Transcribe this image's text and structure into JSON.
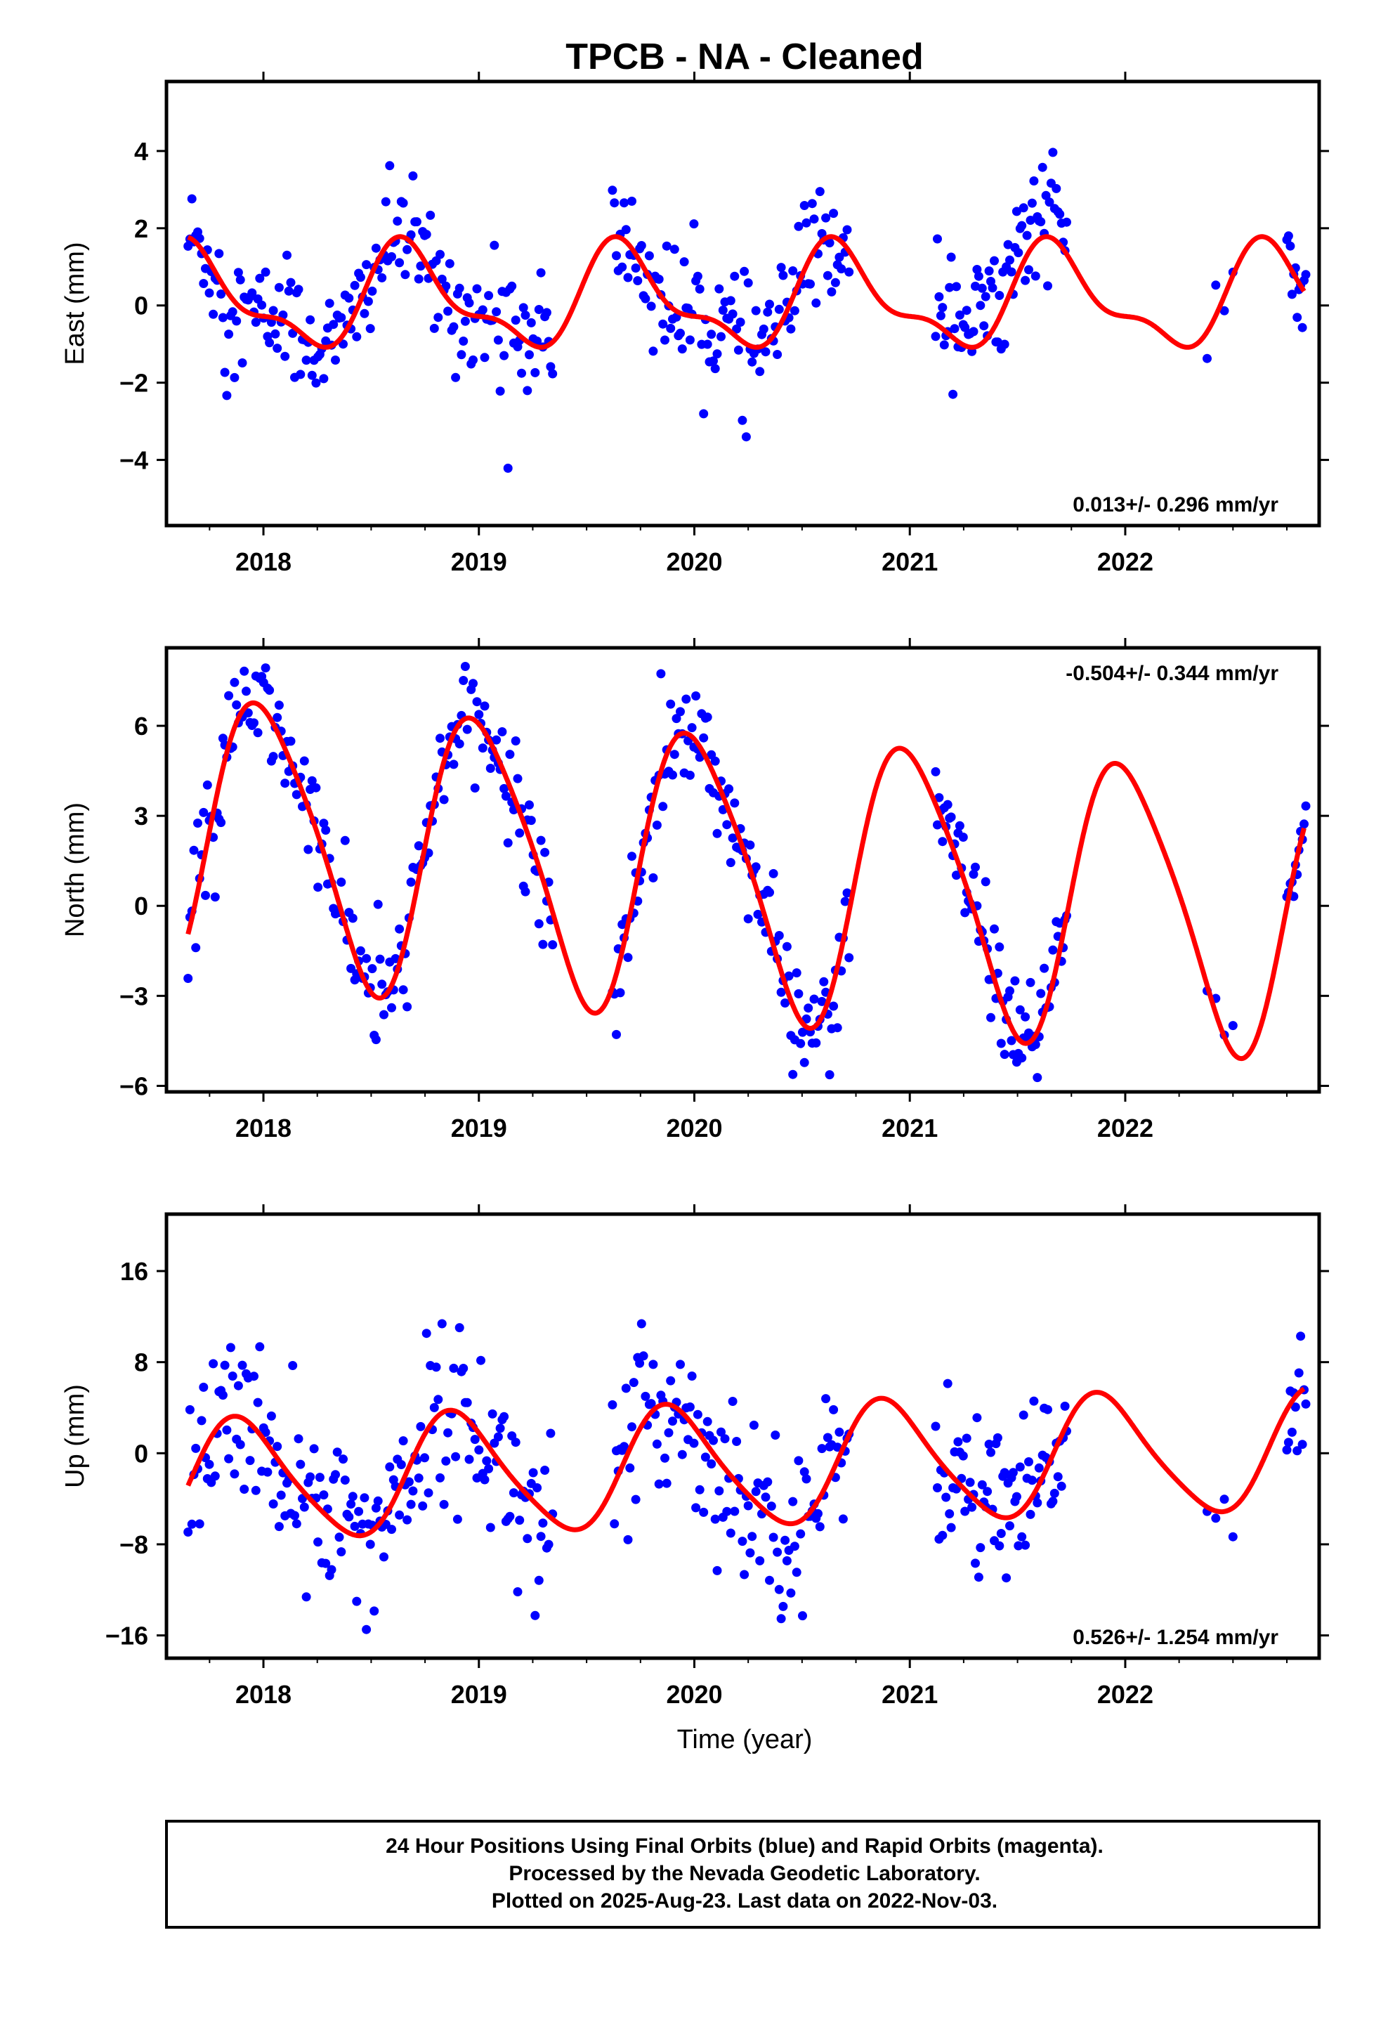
{
  "title": "TPCB  - NA - Cleaned",
  "xlabel": "Time (year)",
  "footer": [
    "24 Hour Positions Using Final Orbits (blue) and Rapid Orbits (magenta).",
    "Processed by the Nevada Geodetic Laboratory.",
    "Plotted on 2025-Aug-23. Last data on 2022-Nov-03."
  ],
  "colors": {
    "points": "#0000ff",
    "fit": "#ff0000",
    "frame": "#000000"
  },
  "chart_data": [
    {
      "type": "scatter",
      "component": "East",
      "ylabel": "East (mm)",
      "rate": "0.013+/- 0.296 mm/yr",
      "rate_position": "bottom-right",
      "xlim": [
        2017.55,
        2022.9
      ],
      "ylim": [
        -5.7,
        5.8
      ],
      "yticks": [
        -4,
        -2,
        0,
        2,
        4
      ],
      "yticklabels": [
        "−4",
        "−2",
        "0",
        "2",
        "4"
      ],
      "xticks": [
        2018,
        2019,
        2020,
        2021,
        2022
      ],
      "xticklabels": [
        "2018",
        "2019",
        "2020",
        "2021",
        "2022"
      ],
      "fit": {
        "offset": 0.15,
        "annual_amp": 1.2,
        "annual_phase": 3.6,
        "semi_amp": 0.5,
        "semi_phase": 0.2,
        "x_ends": [
          2017.65,
          2022.83
        ]
      },
      "points": [
        {
          "start": 2017.65,
          "end": 2019.35,
          "step": 0.009,
          "sigma": 0.75,
          "outlier": 0.035,
          "spread": 2.6
        },
        {
          "start": 2019.62,
          "end": 2020.72,
          "step": 0.009,
          "sigma": 0.8,
          "outlier": 0.04,
          "spread": 2.8
        },
        {
          "start": 2021.12,
          "end": 2021.73,
          "step": 0.008,
          "sigma": 0.75,
          "outlier": 0.03,
          "spread": 2.4,
          "shift": 0.7
        },
        {
          "start": 2022.38,
          "end": 2022.5,
          "step": 0.04,
          "sigma": 0.6,
          "outlier": 0,
          "spread": 1
        },
        {
          "start": 2022.75,
          "end": 2022.84,
          "step": 0.008,
          "sigma": 0.6,
          "outlier": 0,
          "spread": 1
        }
      ]
    },
    {
      "type": "scatter",
      "component": "North",
      "ylabel": "North (mm)",
      "rate": "-0.504+/- 0.344 mm/yr",
      "rate_position": "top-right",
      "xlim": [
        2017.55,
        2022.9
      ],
      "ylim": [
        -6.2,
        8.6
      ],
      "yticks": [
        -6,
        -3,
        0,
        3,
        6
      ],
      "yticklabels": [
        "−6",
        "−3",
        "0",
        "3",
        "6"
      ],
      "xticks": [
        2018,
        2019,
        2020,
        2021,
        2022
      ],
      "xticklabels": [
        "2018",
        "2019",
        "2020",
        "2021",
        "2022"
      ],
      "fit": {
        "offset": 1.2,
        "trend": -0.504,
        "annual_amp": 4.6,
        "annual_phase": 1.55,
        "semi_amp": 0.7,
        "semi_phase": 3.5,
        "x_ends": [
          2017.65,
          2022.83
        ]
      },
      "points": [
        {
          "start": 2017.65,
          "end": 2019.35,
          "step": 0.009,
          "sigma": 0.85,
          "outlier": 0.03,
          "spread": 2.5
        },
        {
          "start": 2019.62,
          "end": 2020.72,
          "step": 0.009,
          "sigma": 0.9,
          "outlier": 0.03,
          "spread": 2.5
        },
        {
          "start": 2021.12,
          "end": 2021.73,
          "step": 0.008,
          "sigma": 0.8,
          "outlier": 0.03,
          "spread": 2.2
        },
        {
          "start": 2022.38,
          "end": 2022.5,
          "step": 0.04,
          "sigma": 0.8,
          "outlier": 0,
          "spread": 1
        },
        {
          "start": 2022.75,
          "end": 2022.84,
          "step": 0.008,
          "sigma": 0.6,
          "outlier": 0,
          "spread": 1
        }
      ]
    },
    {
      "type": "scatter",
      "component": "Up",
      "ylabel": "Up (mm)",
      "rate": "0.526+/- 1.254 mm/yr",
      "rate_position": "bottom-right",
      "xlim": [
        2017.55,
        2022.9
      ],
      "ylim": [
        -18,
        21
      ],
      "yticks": [
        -16,
        -8,
        0,
        8,
        16
      ],
      "yticklabels": [
        "−16",
        "−8",
        "0",
        "8",
        "16"
      ],
      "xticks": [
        2018,
        2019,
        2020,
        2021,
        2022
      ],
      "xticklabels": [
        "2018",
        "2019",
        "2020",
        "2021",
        "2022"
      ],
      "fit": {
        "offset": -1.3,
        "trend": 0.526,
        "annual_amp": 5.2,
        "annual_phase": 2.2,
        "semi_amp": 0.8,
        "semi_phase": 4.0,
        "x_ends": [
          2017.65,
          2022.83
        ]
      },
      "points": [
        {
          "start": 2017.65,
          "end": 2019.35,
          "step": 0.009,
          "sigma": 3.6,
          "outlier": 0.02,
          "spread": 2.3
        },
        {
          "start": 2019.62,
          "end": 2020.72,
          "step": 0.009,
          "sigma": 3.8,
          "outlier": 0.02,
          "spread": 2.3
        },
        {
          "start": 2021.12,
          "end": 2021.73,
          "step": 0.008,
          "sigma": 3.6,
          "outlier": 0.02,
          "spread": 2.2
        },
        {
          "start": 2022.38,
          "end": 2022.5,
          "step": 0.04,
          "sigma": 2.5,
          "outlier": 0,
          "spread": 1
        },
        {
          "start": 2022.75,
          "end": 2022.84,
          "step": 0.008,
          "sigma": 3.0,
          "outlier": 0,
          "spread": 1
        }
      ]
    }
  ]
}
